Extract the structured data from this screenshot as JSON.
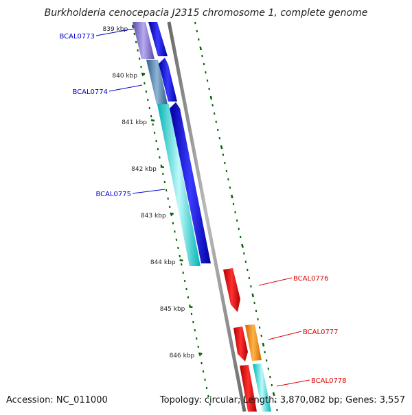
{
  "title": "Burkholderia cenocepacia J2315 chromosome 1, complete genome",
  "accession": "Accession: NC_011000",
  "topology": "Topology: circular; Length: 3,870,082 bp; Genes: 3,557",
  "colors": {
    "backbone": "#808080",
    "tick": "#006400",
    "label_left": "#0000cc",
    "label_right": "#dd0000"
  },
  "ticks": [
    {
      "label": "839 kbp",
      "kbp": 839
    },
    {
      "label": "840 kbp",
      "kbp": 840
    },
    {
      "label": "841 kbp",
      "kbp": 841
    },
    {
      "label": "842 kbp",
      "kbp": 842
    },
    {
      "label": "843 kbp",
      "kbp": 843
    },
    {
      "label": "844 kbp",
      "kbp": 844
    },
    {
      "label": "845 kbp",
      "kbp": 845
    },
    {
      "label": "846 kbp",
      "kbp": 846
    }
  ],
  "gene_labels": [
    {
      "text": "BCAL0773",
      "side": "left"
    },
    {
      "text": "BCAL0774",
      "side": "left"
    },
    {
      "text": "BCAL0775",
      "side": "left"
    },
    {
      "text": "BCAL0776",
      "side": "right"
    },
    {
      "text": "BCAL0777",
      "side": "right"
    },
    {
      "text": "BCAL0778",
      "side": "right"
    }
  ]
}
